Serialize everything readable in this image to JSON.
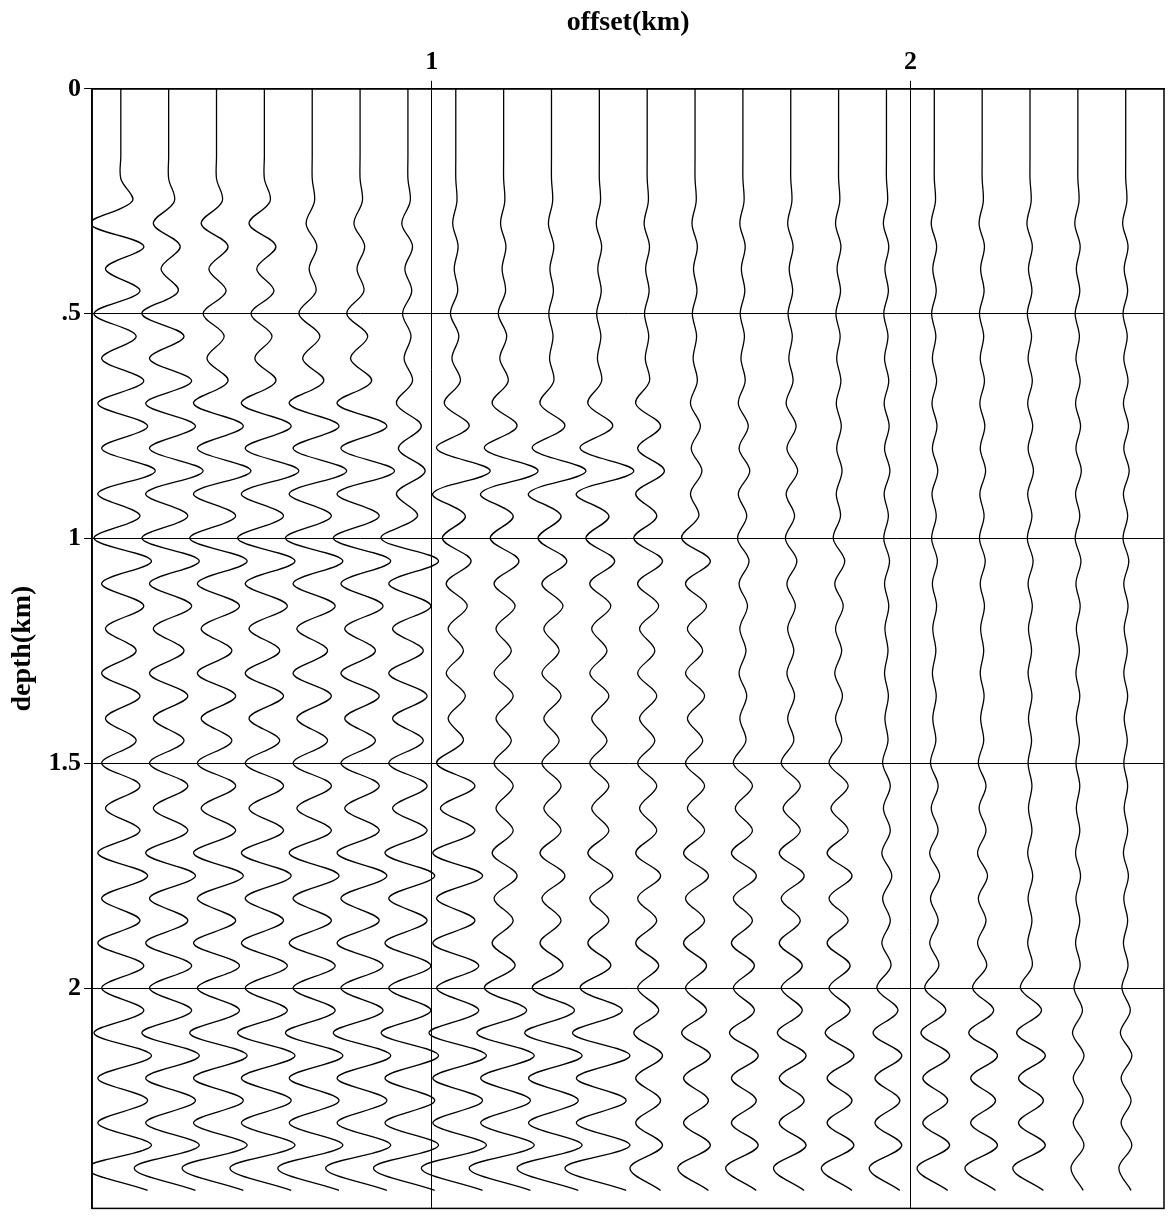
{
  "chart_data": {
    "type": "wiggle",
    "x_label": "offset(km)",
    "y_label": "depth(km)",
    "xlim": [
      0.29,
      2.53
    ],
    "ylim": [
      0,
      2.49
    ],
    "xticks": [
      1,
      2
    ],
    "yticks": [
      0,
      {
        "value": 0.5,
        "label": ".5"
      },
      1,
      1.5,
      2
    ],
    "grid": true,
    "color": "#000000",
    "offsets": [
      0.35,
      0.45,
      0.55,
      0.65,
      0.75,
      0.85,
      0.95,
      1.05,
      1.15,
      1.25,
      1.35,
      1.45,
      1.55,
      1.65,
      1.75,
      1.85,
      1.95,
      2.05,
      2.15,
      2.25,
      2.35,
      2.45
    ],
    "depths": [
      0,
      0.05,
      0.1,
      0.15,
      0.2,
      0.25,
      0.3,
      0.35,
      0.4,
      0.45,
      0.5,
      0.55,
      0.6,
      0.65,
      0.7,
      0.75,
      0.8,
      0.85,
      0.9,
      0.95,
      1,
      1.05,
      1.1,
      1.15,
      1.2,
      1.25,
      1.3,
      1.35,
      1.4,
      1.45,
      1.5,
      1.55,
      1.6,
      1.65,
      1.7,
      1.75,
      1.8,
      1.85,
      1.9,
      1.95,
      2,
      2.05,
      2.1,
      2.15,
      2.2,
      2.25,
      2.3,
      2.35,
      2.4,
      2.45
    ],
    "amplitudes": [
      [
        0,
        0,
        0,
        0,
        0,
        30,
        -80,
        60,
        -40,
        50,
        -70,
        40,
        -50,
        60,
        -60,
        70,
        -50,
        90,
        -60,
        50,
        -70,
        80,
        -50,
        60,
        -40,
        40,
        -50,
        50,
        -40,
        40,
        -50,
        50,
        -40,
        50,
        -60,
        70,
        -50,
        50,
        -60,
        60,
        -50,
        60,
        -70,
        80,
        -60,
        70,
        -60,
        80,
        -90,
        70
      ],
      [
        0,
        0,
        0,
        0,
        0,
        15,
        -40,
        30,
        -20,
        25,
        -70,
        40,
        -50,
        60,
        -60,
        70,
        -50,
        90,
        -60,
        50,
        -70,
        80,
        -50,
        60,
        -40,
        40,
        -50,
        50,
        -40,
        40,
        -50,
        50,
        -40,
        50,
        -60,
        70,
        -50,
        50,
        -60,
        60,
        -50,
        60,
        -70,
        80,
        -60,
        70,
        -60,
        80,
        -90,
        70
      ],
      [
        0,
        0,
        0,
        0,
        0,
        15,
        -40,
        30,
        -20,
        25,
        -35,
        20,
        -25,
        30,
        -60,
        70,
        -50,
        90,
        -60,
        50,
        -70,
        80,
        -50,
        60,
        -40,
        40,
        -50,
        50,
        -40,
        40,
        -50,
        50,
        -40,
        50,
        -60,
        70,
        -50,
        50,
        -60,
        60,
        -50,
        60,
        -70,
        80,
        -60,
        70,
        -60,
        80,
        -90,
        70
      ],
      [
        0,
        0,
        0,
        0,
        0,
        15,
        -40,
        30,
        -20,
        25,
        -35,
        20,
        -25,
        30,
        -60,
        70,
        -50,
        90,
        -60,
        50,
        -70,
        80,
        -50,
        60,
        -40,
        40,
        -50,
        50,
        -40,
        40,
        -50,
        50,
        -40,
        50,
        -60,
        70,
        -50,
        50,
        -60,
        60,
        -50,
        60,
        -70,
        80,
        -60,
        70,
        -60,
        80,
        -90,
        70
      ],
      [
        0,
        0,
        0,
        0,
        0,
        6,
        -16,
        12,
        -8,
        10,
        -35,
        20,
        -25,
        30,
        -60,
        70,
        -50,
        90,
        -60,
        50,
        -70,
        80,
        -50,
        60,
        -40,
        40,
        -50,
        50,
        -40,
        40,
        -50,
        50,
        -40,
        50,
        -60,
        70,
        -50,
        50,
        -60,
        60,
        -50,
        60,
        -70,
        80,
        -60,
        70,
        -60,
        80,
        -90,
        70
      ],
      [
        0,
        0,
        0,
        0,
        0,
        6,
        -16,
        12,
        -8,
        10,
        -35,
        20,
        -25,
        30,
        -60,
        70,
        -50,
        90,
        -60,
        50,
        -70,
        80,
        -50,
        60,
        -40,
        40,
        -50,
        50,
        -40,
        40,
        -50,
        50,
        -40,
        50,
        -60,
        70,
        -50,
        50,
        -60,
        60,
        -50,
        60,
        -70,
        80,
        -60,
        70,
        -60,
        80,
        -90,
        70
      ],
      [
        0,
        0,
        0,
        0,
        0,
        6,
        -16,
        12,
        -8,
        10,
        -14,
        8,
        -10,
        12,
        -30,
        35,
        -25,
        45,
        -30,
        25,
        -70,
        80,
        -50,
        60,
        -40,
        40,
        -50,
        50,
        -40,
        40,
        -50,
        50,
        -40,
        50,
        -60,
        70,
        -50,
        50,
        -60,
        60,
        -50,
        60,
        -70,
        80,
        -60,
        70,
        -60,
        80,
        -90,
        70
      ],
      [
        0,
        0,
        0,
        0,
        0,
        3,
        -8,
        6,
        -4,
        5,
        -14,
        8,
        -10,
        12,
        -30,
        35,
        -50,
        90,
        -60,
        25,
        -35,
        40,
        -25,
        30,
        -20,
        20,
        -25,
        25,
        -20,
        20,
        -50,
        50,
        -40,
        50,
        -60,
        70,
        -50,
        50,
        -60,
        60,
        -50,
        60,
        -70,
        80,
        -60,
        70,
        -60,
        80,
        -90,
        70
      ],
      [
        0,
        0,
        0,
        0,
        0,
        3,
        -8,
        6,
        -4,
        5,
        -14,
        8,
        -10,
        12,
        -30,
        35,
        -50,
        90,
        -60,
        25,
        -35,
        40,
        -25,
        30,
        -20,
        20,
        -25,
        25,
        -20,
        20,
        -25,
        25,
        -20,
        25,
        -30,
        35,
        -25,
        25,
        -30,
        30,
        -50,
        60,
        -70,
        80,
        -60,
        70,
        -60,
        80,
        -90,
        70
      ],
      [
        0,
        0,
        0,
        0,
        0,
        3,
        -8,
        6,
        -4,
        5,
        -7,
        4,
        -5,
        6,
        -30,
        35,
        -50,
        90,
        -60,
        25,
        -35,
        40,
        -25,
        30,
        -20,
        20,
        -25,
        25,
        -20,
        20,
        -25,
        25,
        -20,
        25,
        -30,
        35,
        -25,
        25,
        -30,
        30,
        -50,
        60,
        -70,
        80,
        -60,
        70,
        -60,
        80,
        -90,
        70
      ],
      [
        0,
        0,
        0,
        0,
        0,
        3,
        -8,
        6,
        -4,
        5,
        -7,
        4,
        -5,
        6,
        -30,
        35,
        -50,
        90,
        -60,
        25,
        -35,
        40,
        -25,
        30,
        -20,
        20,
        -25,
        25,
        -20,
        20,
        -25,
        25,
        -20,
        25,
        -30,
        35,
        -25,
        25,
        -30,
        30,
        -50,
        60,
        -70,
        80,
        -60,
        70,
        -60,
        80,
        -90,
        70
      ],
      [
        0,
        0,
        0,
        0,
        0,
        3,
        -8,
        6,
        -4,
        5,
        -7,
        4,
        -5,
        6,
        -30,
        35,
        -25,
        45,
        -30,
        25,
        -35,
        40,
        -25,
        30,
        -20,
        20,
        -25,
        25,
        -20,
        20,
        -25,
        25,
        -20,
        25,
        -30,
        35,
        -25,
        25,
        -30,
        30,
        -25,
        30,
        -35,
        40,
        -30,
        35,
        -30,
        40,
        -45,
        35
      ],
      [
        0,
        0,
        0,
        0,
        0,
        3,
        -8,
        6,
        -4,
        5,
        -7,
        4,
        -5,
        6,
        -12,
        14,
        -10,
        18,
        -12,
        10,
        -35,
        40,
        -25,
        30,
        -20,
        20,
        -25,
        25,
        -20,
        20,
        -25,
        25,
        -20,
        25,
        -30,
        35,
        -25,
        25,
        -30,
        30,
        -25,
        30,
        -35,
        40,
        -30,
        35,
        -30,
        40,
        -45,
        35
      ],
      [
        0,
        0,
        0,
        0,
        0,
        3,
        -8,
        6,
        -4,
        5,
        -7,
        4,
        -5,
        6,
        -12,
        14,
        -10,
        18,
        -12,
        10,
        -14,
        16,
        -10,
        12,
        -8,
        8,
        -10,
        10,
        -8,
        8,
        -25,
        25,
        -20,
        25,
        -30,
        35,
        -25,
        25,
        -30,
        30,
        -25,
        30,
        -35,
        40,
        -30,
        35,
        -30,
        40,
        -45,
        35
      ],
      [
        0,
        0,
        0,
        0,
        0,
        3,
        -8,
        6,
        -4,
        5,
        -7,
        4,
        -5,
        6,
        -12,
        14,
        -10,
        18,
        -12,
        10,
        -14,
        16,
        -10,
        12,
        -8,
        8,
        -10,
        10,
        -8,
        8,
        -25,
        25,
        -20,
        25,
        -30,
        35,
        -25,
        25,
        -30,
        30,
        -25,
        30,
        -35,
        40,
        -30,
        35,
        -30,
        40,
        -45,
        35
      ],
      [
        0,
        0,
        0,
        0,
        0,
        3,
        -8,
        6,
        -4,
        5,
        -7,
        4,
        -5,
        6,
        -6,
        7,
        -5,
        9,
        -6,
        5,
        -14,
        16,
        -10,
        12,
        -8,
        8,
        -10,
        10,
        -8,
        8,
        -25,
        25,
        -20,
        25,
        -30,
        35,
        -25,
        25,
        -30,
        30,
        -25,
        30,
        -35,
        40,
        -30,
        35,
        -30,
        40,
        -45,
        35
      ],
      [
        0,
        0,
        0,
        0,
        0,
        3,
        -8,
        6,
        -4,
        5,
        -7,
        4,
        -5,
        6,
        -6,
        7,
        -5,
        9,
        -6,
        5,
        -7,
        8,
        -5,
        6,
        -4,
        4,
        -5,
        5,
        -4,
        4,
        -10,
        10,
        -8,
        10,
        -12,
        14,
        -10,
        10,
        -12,
        12,
        -25,
        30,
        -35,
        40,
        -30,
        35,
        -30,
        40,
        -45,
        35
      ],
      [
        0,
        0,
        0,
        0,
        0,
        3,
        -8,
        6,
        -4,
        5,
        -7,
        4,
        -5,
        6,
        -6,
        7,
        -5,
        9,
        -6,
        5,
        -7,
        8,
        -5,
        6,
        -4,
        4,
        -5,
        5,
        -4,
        4,
        -10,
        10,
        -8,
        10,
        -12,
        14,
        -10,
        10,
        -12,
        12,
        -25,
        30,
        -35,
        40,
        -30,
        35,
        -30,
        40,
        -45,
        35
      ],
      [
        0,
        0,
        0,
        0,
        0,
        3,
        -8,
        6,
        -4,
        5,
        -7,
        4,
        -5,
        6,
        -6,
        7,
        -5,
        9,
        -6,
        5,
        -7,
        8,
        -5,
        6,
        -4,
        4,
        -5,
        5,
        -4,
        4,
        -10,
        10,
        -8,
        10,
        -12,
        14,
        -10,
        10,
        -12,
        12,
        -25,
        30,
        -35,
        40,
        -30,
        35,
        -30,
        40,
        -45,
        35
      ],
      [
        0,
        0,
        0,
        0,
        0,
        3,
        -8,
        6,
        -4,
        5,
        -7,
        4,
        -5,
        6,
        -6,
        7,
        -5,
        9,
        -6,
        5,
        -7,
        8,
        -5,
        6,
        -4,
        4,
        -5,
        5,
        -4,
        4,
        -5,
        5,
        -4,
        5,
        -6,
        7,
        -5,
        5,
        -6,
        6,
        -25,
        30,
        -35,
        40,
        -30,
        35,
        -30,
        40,
        -45,
        35
      ],
      [
        0,
        0,
        0,
        0,
        0,
        3,
        -8,
        6,
        -4,
        5,
        -7,
        4,
        -5,
        6,
        -6,
        7,
        -5,
        9,
        -6,
        5,
        -7,
        8,
        -5,
        6,
        -4,
        4,
        -5,
        5,
        -4,
        4,
        -5,
        5,
        -4,
        5,
        -6,
        7,
        -5,
        5,
        -6,
        6,
        -10,
        12,
        -14,
        16,
        -12,
        14,
        -12,
        16,
        -18,
        14
      ],
      [
        0,
        0,
        0,
        0,
        0,
        3,
        -8,
        6,
        -4,
        5,
        -7,
        4,
        -5,
        6,
        -6,
        7,
        -5,
        9,
        -6,
        5,
        -7,
        8,
        -5,
        6,
        -4,
        4,
        -5,
        5,
        -4,
        4,
        -5,
        5,
        -4,
        5,
        -6,
        7,
        -5,
        5,
        -6,
        6,
        -10,
        12,
        -14,
        16,
        -12,
        14,
        -12,
        16,
        -18,
        14
      ]
    ]
  }
}
